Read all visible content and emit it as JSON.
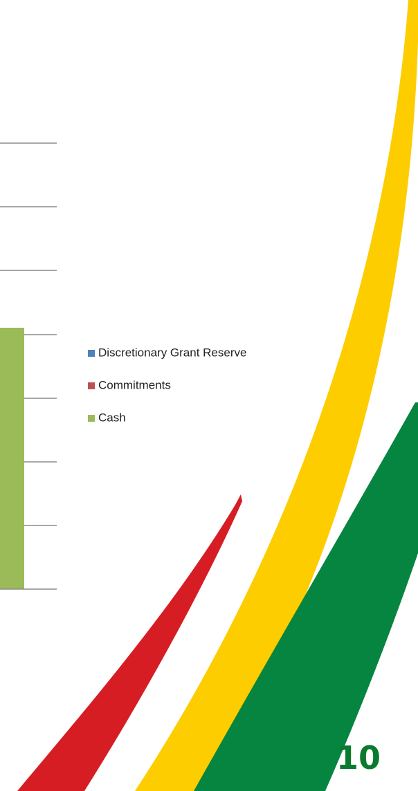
{
  "legend": {
    "items": [
      {
        "label": "Discretionary Grant Reserve",
        "color": "#4f81bd"
      },
      {
        "label": "Commitments",
        "color": "#c0504d"
      },
      {
        "label": "Cash",
        "color": "#9bbb59"
      }
    ]
  },
  "page_number": "10"
}
